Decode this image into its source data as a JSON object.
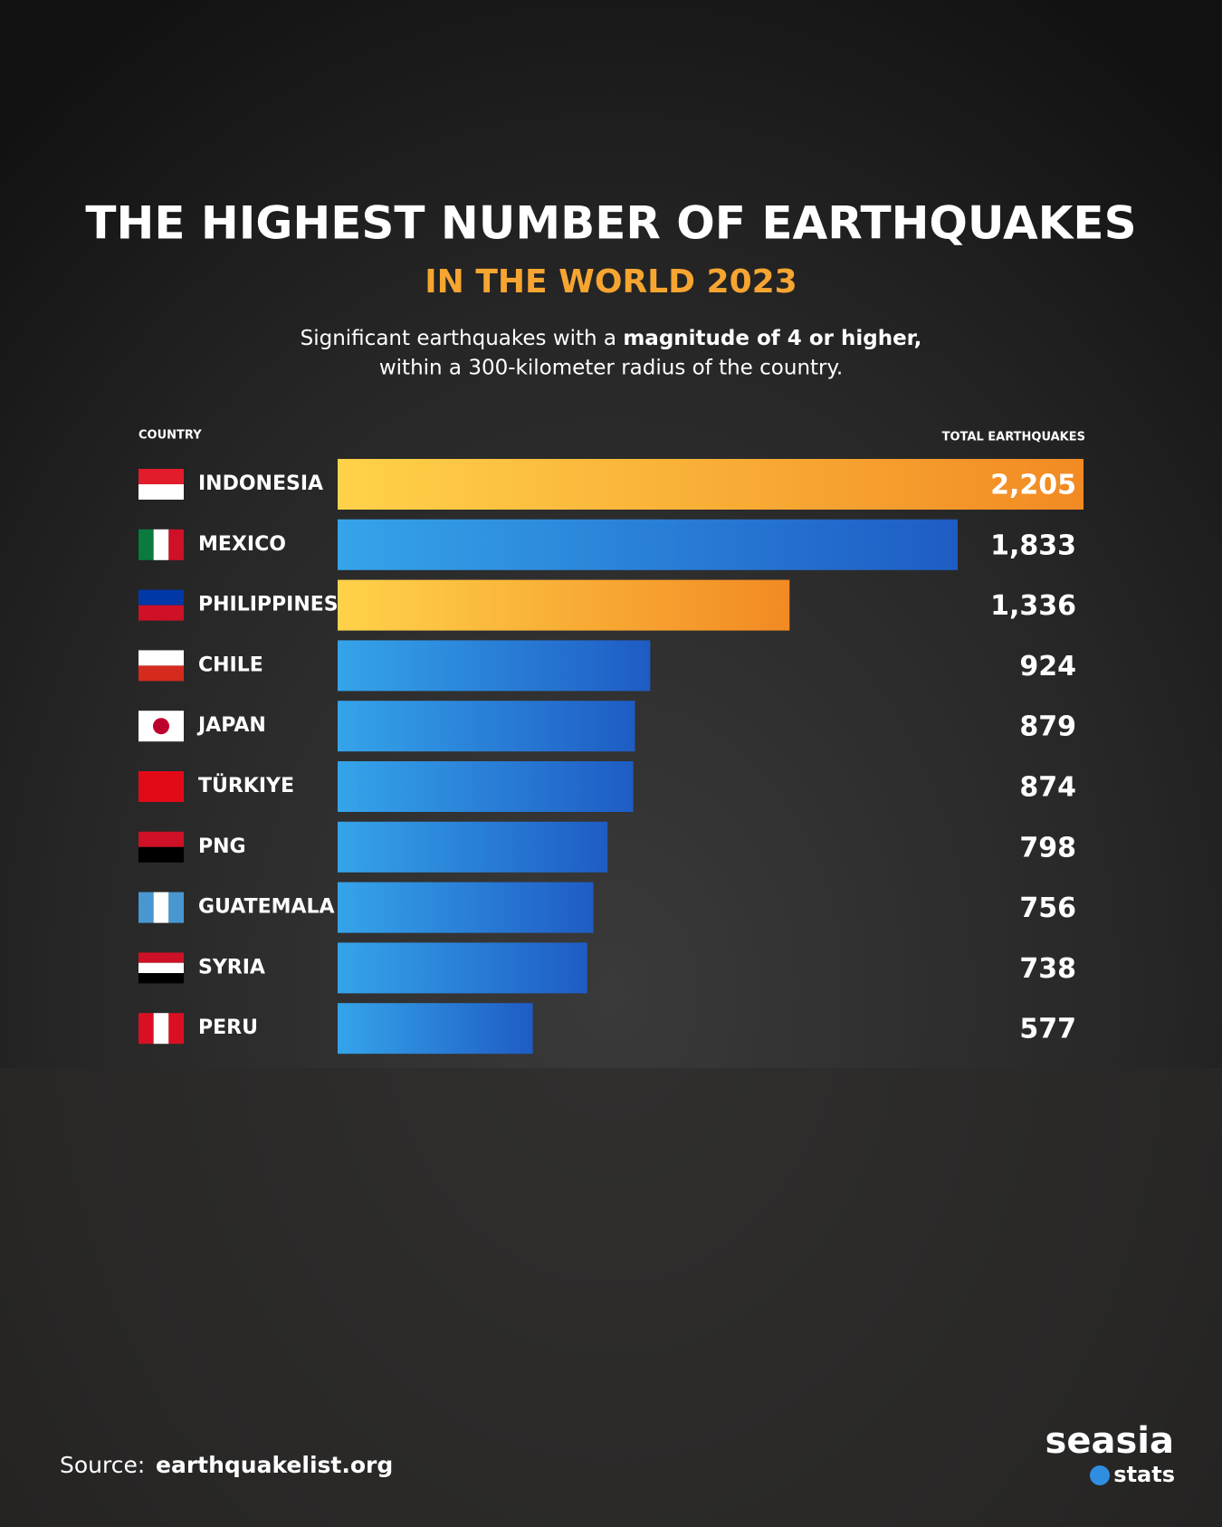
{
  "chart_data": {
    "type": "bar",
    "orientation": "horizontal",
    "title": "THE HIGHEST NUMBER OF EARTHQUAKES",
    "subtitle": "IN THE WORLD 2023",
    "description": [
      "Significant earthquakes with a ",
      "magnitude of 4 or higher,",
      "within a 300-kilometer radius of the country."
    ],
    "category_header": "COUNTRY",
    "value_header": "TOTAL EARTHQUAKES",
    "categories": [
      "INDONESIA",
      "MEXICO",
      "PHILIPPINES",
      "CHILE",
      "JAPAN",
      "TÜRKIYE",
      "PNG",
      "GUATEMALA",
      "SYRIA",
      "PERU"
    ],
    "values": [
      2205,
      1833,
      1336,
      924,
      879,
      874,
      798,
      756,
      738,
      577
    ],
    "value_labels": [
      "2,205",
      "1,833",
      "1,336",
      "924",
      "879",
      "874",
      "798",
      "756",
      "738",
      "577"
    ],
    "colors": [
      "#f7a531",
      "#2f8ee0",
      "#f7a531",
      "#2f8ee0",
      "#2f8ee0",
      "#2f8ee0",
      "#2f8ee0",
      "#2f8ee0",
      "#2f8ee0",
      "#2f8ee0"
    ],
    "source_label": "Source:",
    "source": "earthquakelist.org",
    "brand": "seasia",
    "brand_sub": "stats"
  }
}
